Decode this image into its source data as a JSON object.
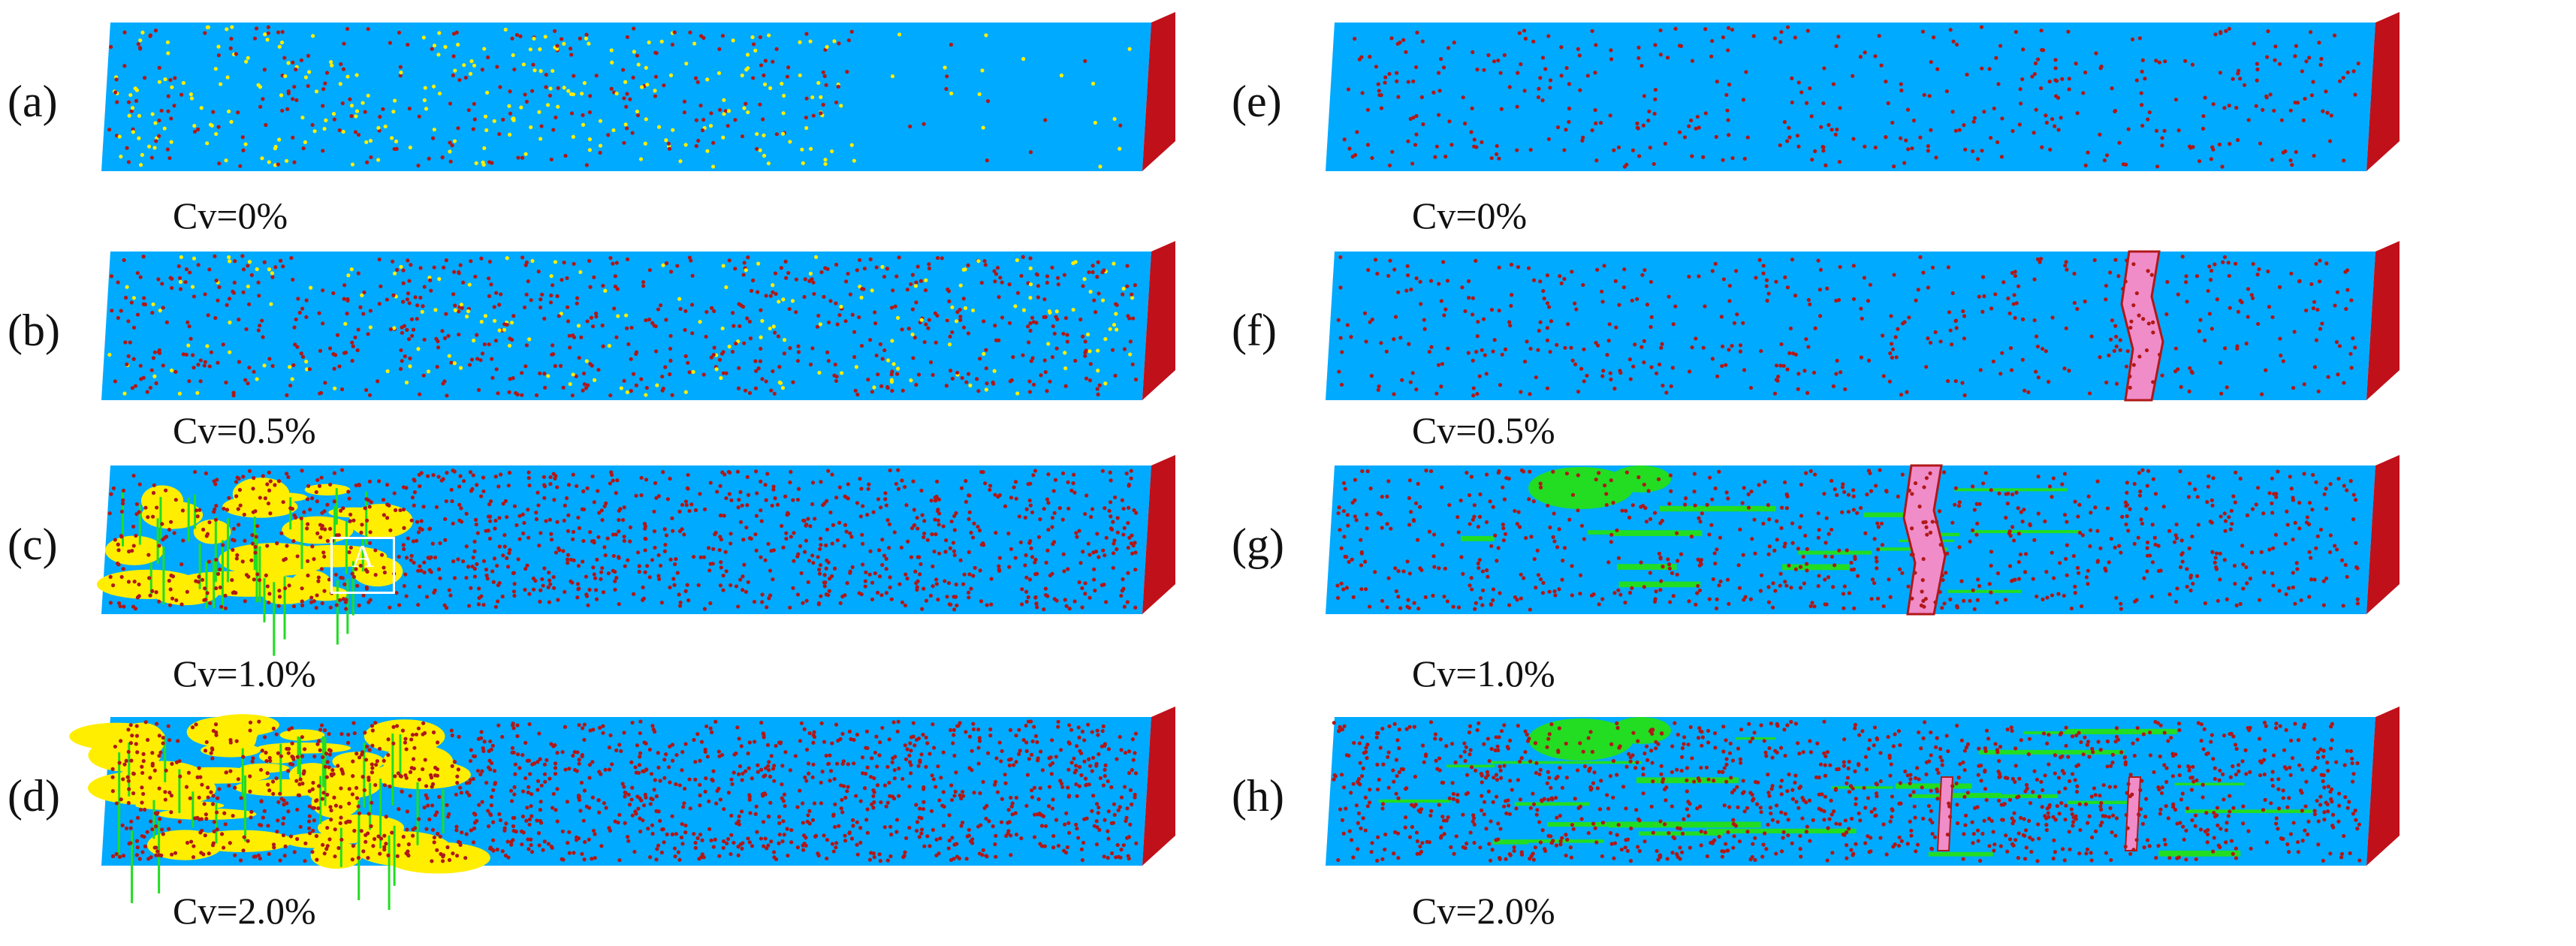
{
  "panels": [
    {
      "id": "a",
      "letter": "(a)",
      "caption": "Cv=0%",
      "col": 0,
      "row": 0,
      "variant": "yellow-sparse"
    },
    {
      "id": "b",
      "letter": "(b)",
      "caption": "Cv=0.5%",
      "col": 0,
      "row": 1,
      "variant": "mixed-sparse"
    },
    {
      "id": "c",
      "letter": "(c)",
      "caption": "Cv=1.0%",
      "col": 0,
      "row": 2,
      "variant": "yellow-left",
      "inset_label": "A"
    },
    {
      "id": "d",
      "letter": "(d)",
      "caption": "Cv=2.0%",
      "col": 0,
      "row": 3,
      "variant": "yellow-left-heavy"
    },
    {
      "id": "e",
      "letter": "(e)",
      "caption": "Cv=0%",
      "col": 1,
      "row": 0,
      "variant": "red-sparse"
    },
    {
      "id": "f",
      "letter": "(f)",
      "caption": "Cv=0.5%",
      "col": 1,
      "row": 1,
      "variant": "crack"
    },
    {
      "id": "g",
      "letter": "(g)",
      "caption": "Cv=1.0%",
      "col": 1,
      "row": 2,
      "variant": "crack-green"
    },
    {
      "id": "h",
      "letter": "(h)",
      "caption": "Cv=2.0%",
      "col": 1,
      "row": 3,
      "variant": "green-heavy"
    }
  ],
  "colors": {
    "matrix": "#00aaff",
    "atom": "#b01818",
    "end_face": "#c0101a",
    "yellow": "#ffee00",
    "green": "#22dd22",
    "pink": "#f08cc8"
  }
}
